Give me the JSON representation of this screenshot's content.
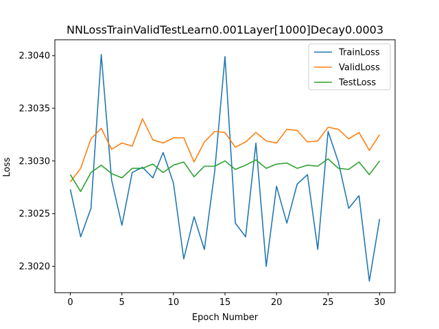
{
  "chart_data": {
    "type": "line",
    "title": "NNLossTrainValidTestLearn0.001Layer[1000]Decay0.0003",
    "xlabel": "Epoch Number",
    "ylabel": "Loss",
    "xlim": [
      -1.5,
      31.5
    ],
    "ylim": [
      2.30175,
      2.30415
    ],
    "xticks": [
      0,
      5,
      10,
      15,
      20,
      25,
      30
    ],
    "xtick_labels": [
      "0",
      "5",
      "10",
      "15",
      "20",
      "25",
      "30"
    ],
    "yticks": [
      2.302,
      2.3025,
      2.303,
      2.3035,
      2.304
    ],
    "ytick_labels": [
      "2.3020",
      "2.3025",
      "2.3030",
      "2.3035",
      "2.3040"
    ],
    "grid": false,
    "legend_position": "top-right",
    "x": [
      0,
      1,
      2,
      3,
      4,
      5,
      6,
      7,
      8,
      9,
      10,
      11,
      12,
      13,
      14,
      15,
      16,
      17,
      18,
      19,
      20,
      21,
      22,
      23,
      24,
      25,
      26,
      27,
      28,
      29,
      30
    ],
    "series": [
      {
        "name": "TrainLoss",
        "color": "#1f77b4",
        "values": [
          2.30273,
          2.30228,
          2.30255,
          2.30401,
          2.30282,
          2.30239,
          2.30289,
          2.30294,
          2.30284,
          2.30308,
          2.30279,
          2.30207,
          2.30247,
          2.30216,
          2.3029,
          2.30399,
          2.30241,
          2.30228,
          2.30317,
          2.302,
          2.30276,
          2.30241,
          2.30278,
          2.30287,
          2.30216,
          2.30328,
          2.30299,
          2.30255,
          2.30267,
          2.30186,
          2.30245
        ]
      },
      {
        "name": "ValidLoss",
        "color": "#ff7f0e",
        "values": [
          2.3028,
          2.30293,
          2.30321,
          2.30331,
          2.30311,
          2.30317,
          2.30314,
          2.3034,
          2.3032,
          2.30317,
          2.30322,
          2.30322,
          2.30299,
          2.30318,
          2.30328,
          2.30327,
          2.30313,
          2.30318,
          2.30327,
          2.30319,
          2.30317,
          2.3033,
          2.30329,
          2.30318,
          2.30319,
          2.30332,
          2.3033,
          2.30321,
          2.30327,
          2.3031,
          2.30325
        ]
      },
      {
        "name": "TestLoss",
        "color": "#2ca02c",
        "values": [
          2.30287,
          2.30271,
          2.30289,
          2.30296,
          2.30288,
          2.30284,
          2.30293,
          2.30293,
          2.30297,
          2.30289,
          2.30296,
          2.30299,
          2.30285,
          2.30295,
          2.30295,
          2.303,
          2.30292,
          2.30296,
          2.30301,
          2.30293,
          2.30297,
          2.30298,
          2.30293,
          2.30296,
          2.30295,
          2.30302,
          2.30293,
          2.30292,
          2.30299,
          2.30287,
          2.303
        ]
      }
    ]
  }
}
